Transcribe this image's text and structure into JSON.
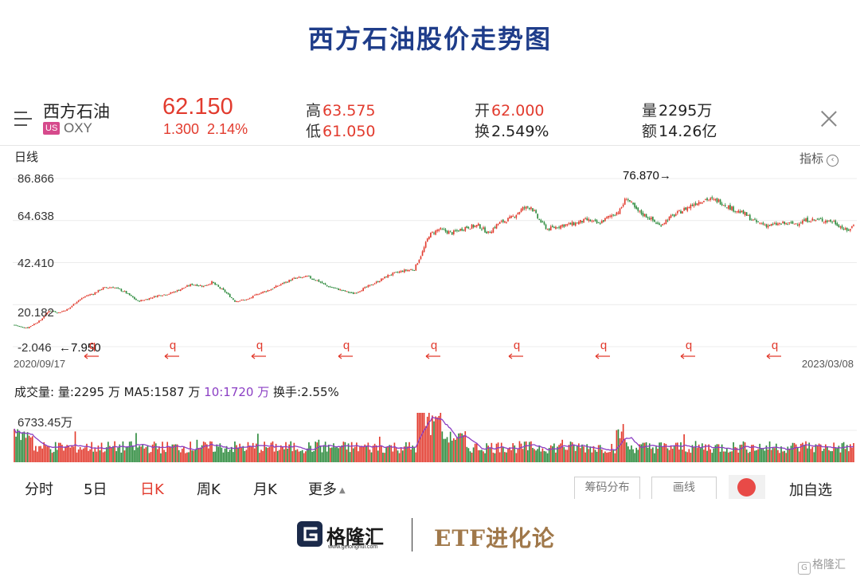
{
  "page": {
    "title": "西方石油股价走势图"
  },
  "quote": {
    "name": "西方石油",
    "market": "US",
    "ticker": "OXY",
    "price": "62.150",
    "change": "1.300",
    "change_pct": "2.14%",
    "high_label": "高",
    "high": "63.575",
    "low_label": "低",
    "low": "61.050",
    "open_label": "开",
    "open": "62.000",
    "turnover_label": "换",
    "turnover": "2.549%",
    "volume_label": "量",
    "volume": "2295万",
    "amount_label": "额",
    "amount": "14.26亿",
    "icons": {
      "menu": "menu-icon",
      "close": "close-icon"
    }
  },
  "chart": {
    "period_label": "日线",
    "indicator_label": "指标",
    "indicator_icon": "chevron-left-icon",
    "y_ticks": [
      "86.866",
      "64.638",
      "42.410",
      "20.182",
      "-2.046"
    ],
    "start_date": "2020/09/17",
    "end_date": "2023/03/08",
    "max_annotation": "76.870→",
    "min_annotation": "←7.950",
    "q_marker": "q",
    "colors": {
      "up": "#e23b2e",
      "down": "#2e8b3e",
      "grid": "#ececec",
      "ma10": "#8b3fc4"
    }
  },
  "volume": {
    "label": "成交量:",
    "vol": "量:2295 万",
    "ma5": "MA5:1587 万",
    "ma10": "10:1720 万",
    "turnover": "换手:2.55%",
    "y_tick": "6733.45万"
  },
  "tabs": {
    "items": [
      "分时",
      "5日",
      "日K",
      "周K",
      "月K",
      "更多"
    ],
    "active": "日K",
    "chip_tool": "筹码分布",
    "draw_tool": "画线",
    "add_watch": "加自选"
  },
  "footer": {
    "brand": "格隆汇",
    "url": "www.gelonghui.com",
    "etf_brand": "ETF进化论",
    "watermark": "格隆汇"
  },
  "chart_data": {
    "type": "candlestick",
    "x_range": [
      "2020/09/17",
      "2023/03/08"
    ],
    "ylim": [
      -2.046,
      86.866
    ],
    "y_ticks": [
      86.866,
      64.638,
      42.41,
      20.182,
      -2.046
    ],
    "annotations": [
      {
        "label": "76.870→",
        "value": 76.87
      },
      {
        "label": "←7.950",
        "value": 7.95
      }
    ],
    "close_path_approx": [
      [
        0,
        9.5
      ],
      [
        4,
        8.5
      ],
      [
        8,
        7.95
      ],
      [
        11,
        9.5
      ],
      [
        16,
        12
      ],
      [
        21,
        17
      ],
      [
        27,
        16
      ],
      [
        33,
        18
      ],
      [
        38,
        22
      ],
      [
        44,
        25
      ],
      [
        48,
        26
      ],
      [
        54,
        29
      ],
      [
        60,
        29.5
      ],
      [
        67,
        27
      ],
      [
        75,
        22
      ],
      [
        80,
        23
      ],
      [
        87,
        25
      ],
      [
        94,
        26
      ],
      [
        100,
        28
      ],
      [
        108,
        31
      ],
      [
        115,
        30
      ],
      [
        120,
        32
      ],
      [
        128,
        27
      ],
      [
        134,
        22
      ],
      [
        142,
        23
      ],
      [
        148,
        26
      ],
      [
        155,
        28
      ],
      [
        162,
        31
      ],
      [
        170,
        34
      ],
      [
        178,
        35
      ],
      [
        184,
        33
      ],
      [
        190,
        30
      ],
      [
        198,
        28
      ],
      [
        206,
        26
      ],
      [
        213,
        29
      ],
      [
        220,
        32
      ],
      [
        228,
        36
      ],
      [
        236,
        38
      ],
      [
        243,
        39
      ],
      [
        248,
        48
      ],
      [
        252,
        57
      ],
      [
        258,
        60
      ],
      [
        266,
        58
      ],
      [
        274,
        61
      ],
      [
        282,
        62
      ],
      [
        288,
        58
      ],
      [
        294,
        63
      ],
      [
        302,
        66
      ],
      [
        309,
        71
      ],
      [
        314,
        72
      ],
      [
        318,
        66
      ],
      [
        324,
        60
      ],
      [
        332,
        62
      ],
      [
        340,
        63
      ],
      [
        348,
        65
      ],
      [
        355,
        63
      ],
      [
        362,
        67
      ],
      [
        368,
        70
      ],
      [
        372,
        76.87
      ],
      [
        378,
        70
      ],
      [
        386,
        66
      ],
      [
        392,
        62
      ],
      [
        398,
        66
      ],
      [
        406,
        70
      ],
      [
        414,
        74
      ],
      [
        420,
        76
      ],
      [
        428,
        75
      ],
      [
        436,
        71
      ],
      [
        444,
        68
      ],
      [
        450,
        64
      ],
      [
        458,
        62
      ],
      [
        466,
        63
      ],
      [
        474,
        63
      ],
      [
        482,
        65
      ],
      [
        490,
        65
      ],
      [
        498,
        64
      ],
      [
        506,
        59
      ],
      [
        510,
        62.15
      ]
    ],
    "volume": {
      "last": "2295万",
      "ma5": "1587万",
      "ma10": "1720万",
      "turnover": "2.55%",
      "y_max": 6733.45,
      "unit": "万"
    }
  }
}
